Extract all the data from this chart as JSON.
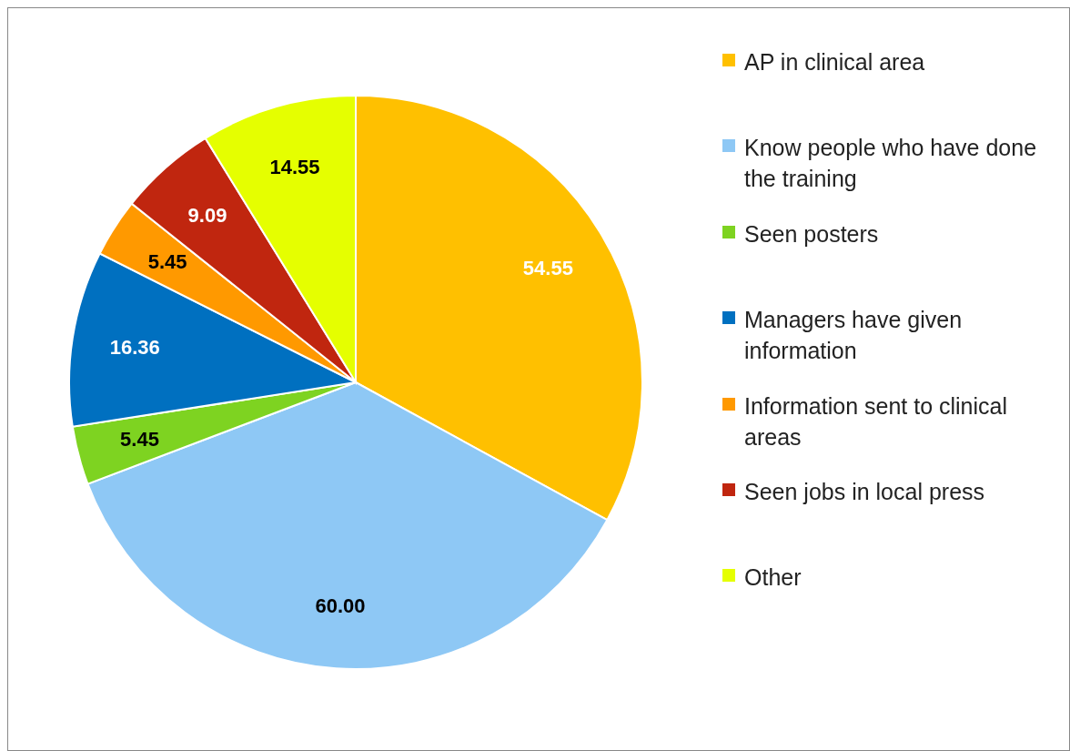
{
  "chart_data": {
    "type": "pie",
    "categories": [
      "AP in clinical area",
      "Know people who have done the training",
      "Seen posters",
      "Managers have given information",
      "Information sent to clinical areas",
      "Seen jobs in local press",
      "Other"
    ],
    "values": [
      54.55,
      60.0,
      5.45,
      16.36,
      5.45,
      9.09,
      14.55
    ],
    "value_labels": [
      "54.55",
      "60.00",
      "5.45",
      "16.36",
      "5.45",
      "9.09",
      "14.55"
    ],
    "colors": [
      "#ffc000",
      "#8ec8f5",
      "#7ed321",
      "#0070c0",
      "#ff9900",
      "#c0260f",
      "#e5ff00"
    ],
    "legend": "right"
  }
}
